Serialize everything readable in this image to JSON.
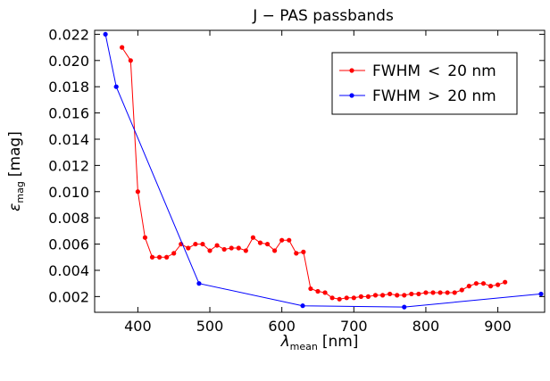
{
  "chart_data": {
    "type": "line",
    "title": "J − PAS passbands",
    "xlabel": "λ",
    "xlabel_sub": "mean",
    "xlabel_unit": "[nm]",
    "ylabel": "ε",
    "ylabel_sub": "mag",
    "ylabel_unit": "[mag]",
    "xlim": [
      340,
      965
    ],
    "ylim": [
      0.0008,
      0.0223
    ],
    "xticks": [
      400,
      500,
      600,
      700,
      800,
      900
    ],
    "yticks": [
      0.002,
      0.004,
      0.006,
      0.008,
      0.01,
      0.012,
      0.014,
      0.016,
      0.018,
      0.02,
      0.022
    ],
    "ytick_labels": [
      "0.002",
      "0.004",
      "0.006",
      "0.008",
      "0.010",
      "0.012",
      "0.014",
      "0.016",
      "0.018",
      "0.020",
      "0.022"
    ],
    "legend_position": "top-right",
    "grid": false,
    "series": [
      {
        "name": "FWHM < 20 nm",
        "legend_left": "FWHM",
        "legend_op": "<",
        "legend_right": "20 nm",
        "color": "#ff0000",
        "x": [
          378,
          390,
          400,
          410,
          420,
          430,
          440,
          450,
          460,
          470,
          480,
          490,
          500,
          510,
          520,
          530,
          540,
          550,
          560,
          570,
          580,
          590,
          600,
          610,
          620,
          630,
          640,
          650,
          660,
          670,
          680,
          690,
          700,
          710,
          720,
          730,
          740,
          750,
          760,
          770,
          780,
          790,
          800,
          810,
          820,
          830,
          840,
          850,
          860,
          870,
          880,
          890,
          900,
          910
        ],
        "y": [
          0.021,
          0.02,
          0.01,
          0.0065,
          0.005,
          0.005,
          0.005,
          0.0053,
          0.006,
          0.0057,
          0.006,
          0.006,
          0.0055,
          0.0059,
          0.0056,
          0.0057,
          0.0057,
          0.0055,
          0.0065,
          0.0061,
          0.006,
          0.0055,
          0.0063,
          0.0063,
          0.0053,
          0.0054,
          0.0026,
          0.0024,
          0.0023,
          0.0019,
          0.0018,
          0.0019,
          0.0019,
          0.002,
          0.002,
          0.0021,
          0.0021,
          0.0022,
          0.0021,
          0.0021,
          0.0022,
          0.0022,
          0.0023,
          0.0023,
          0.0023,
          0.0023,
          0.0023,
          0.0025,
          0.0028,
          0.003,
          0.003,
          0.0028,
          0.0029,
          0.0031
        ]
      },
      {
        "name": "FWHM > 20 nm",
        "legend_left": "FWHM",
        "legend_op": ">",
        "legend_right": "20 nm",
        "color": "#0000ff",
        "x": [
          355,
          370,
          485,
          629,
          770,
          960
        ],
        "y": [
          0.022,
          0.018,
          0.003,
          0.0013,
          0.0012,
          0.0022
        ]
      }
    ]
  }
}
